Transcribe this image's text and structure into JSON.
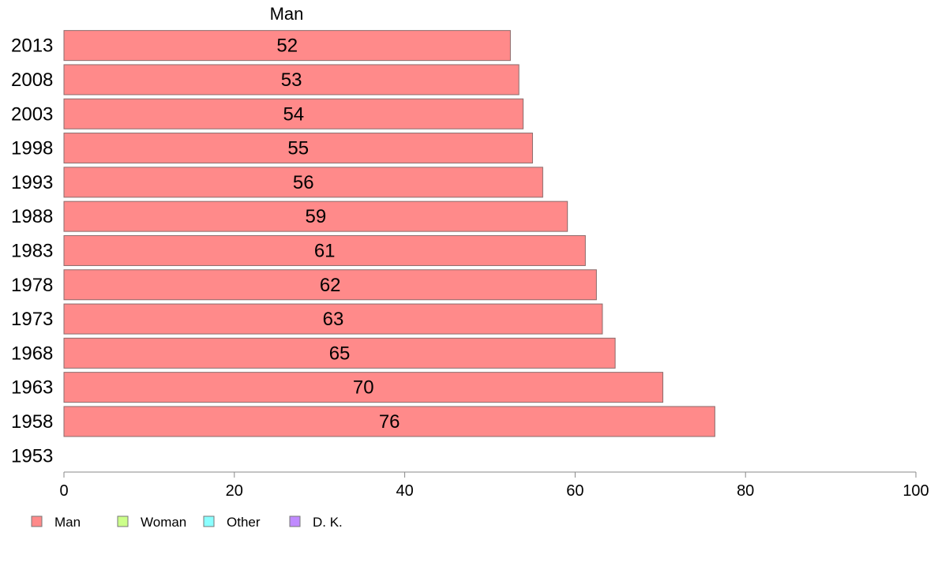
{
  "chart_data": {
    "type": "bar",
    "orientation": "horizontal",
    "series_title": "Man",
    "categories": [
      "2013",
      "2008",
      "2003",
      "1998",
      "1993",
      "1988",
      "1983",
      "1978",
      "1973",
      "1968",
      "1963",
      "1958",
      "1953"
    ],
    "series": [
      {
        "name": "Man",
        "color": "#ff8a8a",
        "values": [
          52.4,
          53.4,
          53.9,
          55.0,
          56.2,
          59.1,
          61.2,
          62.5,
          63.2,
          64.7,
          70.3,
          76.4,
          null
        ],
        "labels": [
          "52",
          "53",
          "54",
          "55",
          "56",
          "59",
          "61",
          "62",
          "63",
          "65",
          "70",
          "76",
          ""
        ]
      }
    ],
    "legend": [
      {
        "name": "Man",
        "color": "#ff8a8a"
      },
      {
        "name": "Woman",
        "color": "#ccff8a"
      },
      {
        "name": "Other",
        "color": "#8affff"
      },
      {
        "name": "D. K.",
        "color": "#c08aff"
      }
    ],
    "legend_position": "bottom",
    "xlim": [
      0,
      100
    ],
    "xticks": [
      0,
      20,
      40,
      60,
      80,
      100
    ],
    "grid": false
  }
}
